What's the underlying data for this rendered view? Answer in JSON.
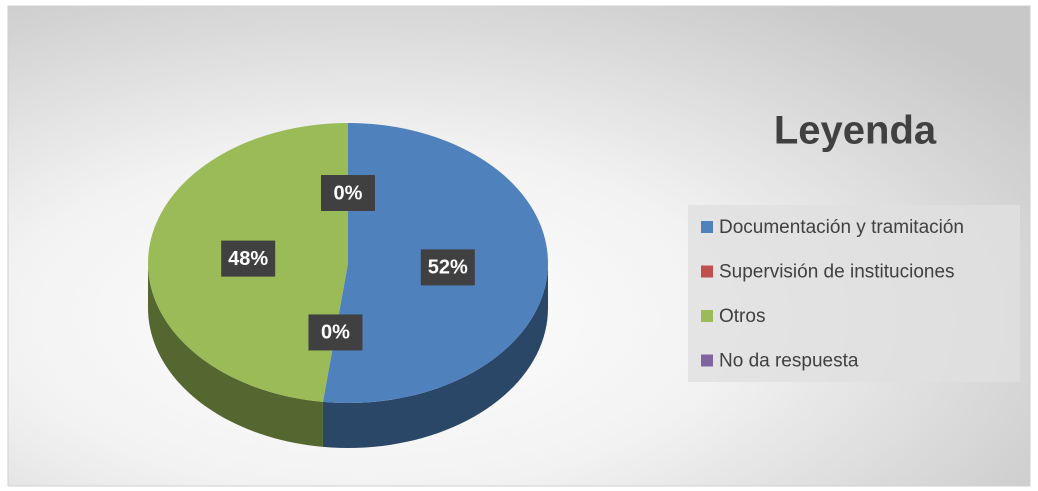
{
  "chart_data": {
    "type": "pie",
    "title": "Leyenda",
    "categories": [
      "Documentación y tramitación",
      "Supervisión de instituciones",
      "Otros",
      "No da respuesta"
    ],
    "values": [
      52,
      0,
      48,
      0
    ],
    "value_labels": [
      "52%",
      "0%",
      "48%",
      "0%"
    ],
    "colors": [
      "#4f81bd",
      "#c0504d",
      "#9bbb59",
      "#8064a2"
    ]
  }
}
